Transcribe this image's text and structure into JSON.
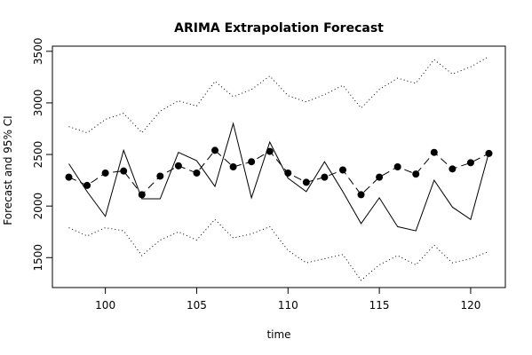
{
  "chart_data": {
    "type": "line",
    "title": "ARIMA Extrapolation Forecast",
    "xlabel": "time",
    "ylabel": "Forecast and 95% CI",
    "xlim": [
      97.1,
      121.9
    ],
    "ylim": [
      1210,
      3550
    ],
    "x_ticks": [
      100,
      105,
      110,
      115,
      120
    ],
    "y_ticks": [
      1500,
      2000,
      2500,
      3000,
      3500
    ],
    "x": [
      98,
      99,
      100,
      101,
      102,
      103,
      104,
      105,
      106,
      107,
      108,
      109,
      110,
      111,
      112,
      113,
      114,
      115,
      116,
      117,
      118,
      119,
      120,
      121
    ],
    "series": [
      {
        "style": "solid",
        "color": "#000000",
        "values": [
          2410,
          2140,
          1900,
          2540,
          2070,
          2070,
          2520,
          2440,
          2190,
          2800,
          2080,
          2620,
          2270,
          2140,
          2430,
          2140,
          1830,
          2080,
          1800,
          1760,
          2250,
          1990,
          1870,
          2520
        ]
      },
      {
        "style": "dashed-points",
        "color": "#000000",
        "values": [
          2280,
          2200,
          2320,
          2340,
          2110,
          2290,
          2390,
          2320,
          2540,
          2380,
          2430,
          2530,
          2320,
          2230,
          2280,
          2350,
          2110,
          2280,
          2380,
          2310,
          2520,
          2360,
          2420,
          2510
        ]
      },
      {
        "style": "dotted",
        "color": "#000000",
        "values": [
          2770,
          2710,
          2840,
          2900,
          2710,
          2920,
          3020,
          2970,
          3210,
          3060,
          3130,
          3260,
          3070,
          3010,
          3080,
          3170,
          2950,
          3130,
          3240,
          3190,
          3420,
          3280,
          3350,
          3450
        ]
      },
      {
        "style": "dotted",
        "color": "#000000",
        "values": [
          1790,
          1710,
          1790,
          1760,
          1520,
          1670,
          1750,
          1670,
          1870,
          1690,
          1730,
          1800,
          1570,
          1450,
          1490,
          1530,
          1280,
          1430,
          1520,
          1430,
          1620,
          1450,
          1490,
          1560
        ]
      }
    ]
  }
}
